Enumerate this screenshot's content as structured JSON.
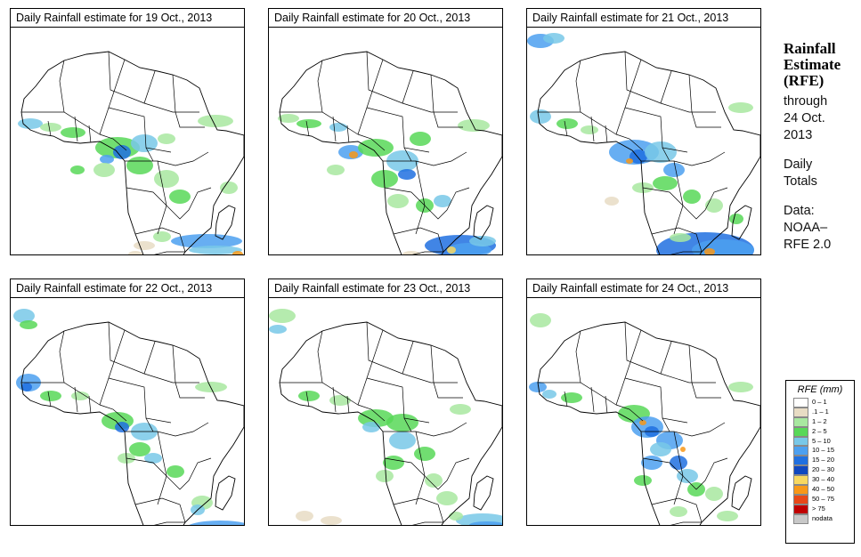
{
  "panels": [
    {
      "title": "Daily Rainfall estimate for  19 Oct., 2013",
      "rain": "p19"
    },
    {
      "title": "Daily Rainfall estimate for  20 Oct., 2013",
      "rain": "p20"
    },
    {
      "title": "Daily Rainfall estimate for  21 Oct., 2013",
      "rain": "p21"
    },
    {
      "title": "Daily Rainfall estimate for  22 Oct., 2013",
      "rain": "p22"
    },
    {
      "title": "Daily Rainfall estimate for  23 Oct., 2013",
      "rain": "p23"
    },
    {
      "title": "Daily Rainfall estimate for  24 Oct., 2013",
      "rain": "p24"
    }
  ],
  "sidebar": {
    "title_line1": "Rainfall",
    "title_line2": "Estimate",
    "title_line3": "(RFE)",
    "through": "through",
    "date_line1": "24 Oct.",
    "date_line2": "2013",
    "daily": "Daily",
    "totals": "Totals",
    "data_label": "Data:",
    "source_line1": "NOAA–",
    "source_line2": "RFE 2.0"
  },
  "legend": {
    "title": "RFE (mm)",
    "items": [
      {
        "label": "0 – 1",
        "color": "#ffffff"
      },
      {
        "label": ".1 – 1",
        "color": "#e8dcc4"
      },
      {
        "label": "1 – 2",
        "color": "#a8e8a0"
      },
      {
        "label": "2 – 5",
        "color": "#58d858"
      },
      {
        "label": "5 – 10",
        "color": "#78c8e8"
      },
      {
        "label": "10 – 15",
        "color": "#4ca0f0"
      },
      {
        "label": "15 – 20",
        "color": "#2070e0"
      },
      {
        "label": "20 – 30",
        "color": "#1048c0"
      },
      {
        "label": "30 – 40",
        "color": "#f8d860"
      },
      {
        "label": "40 – 50",
        "color": "#f89818"
      },
      {
        "label": "50 – 75",
        "color": "#e84818"
      },
      {
        "label": "> 75",
        "color": "#c00000"
      },
      {
        "label": "nodata",
        "color": "#c8c8c8"
      }
    ]
  },
  "colors": {
    "light_green": "#a8e8a0",
    "green": "#58d858",
    "light_blue": "#78c8e8",
    "blue": "#4ca0f0",
    "dark_blue": "#2070e0",
    "yellow": "#f8d860",
    "orange": "#f89818",
    "tan": "#e8dcc4"
  }
}
